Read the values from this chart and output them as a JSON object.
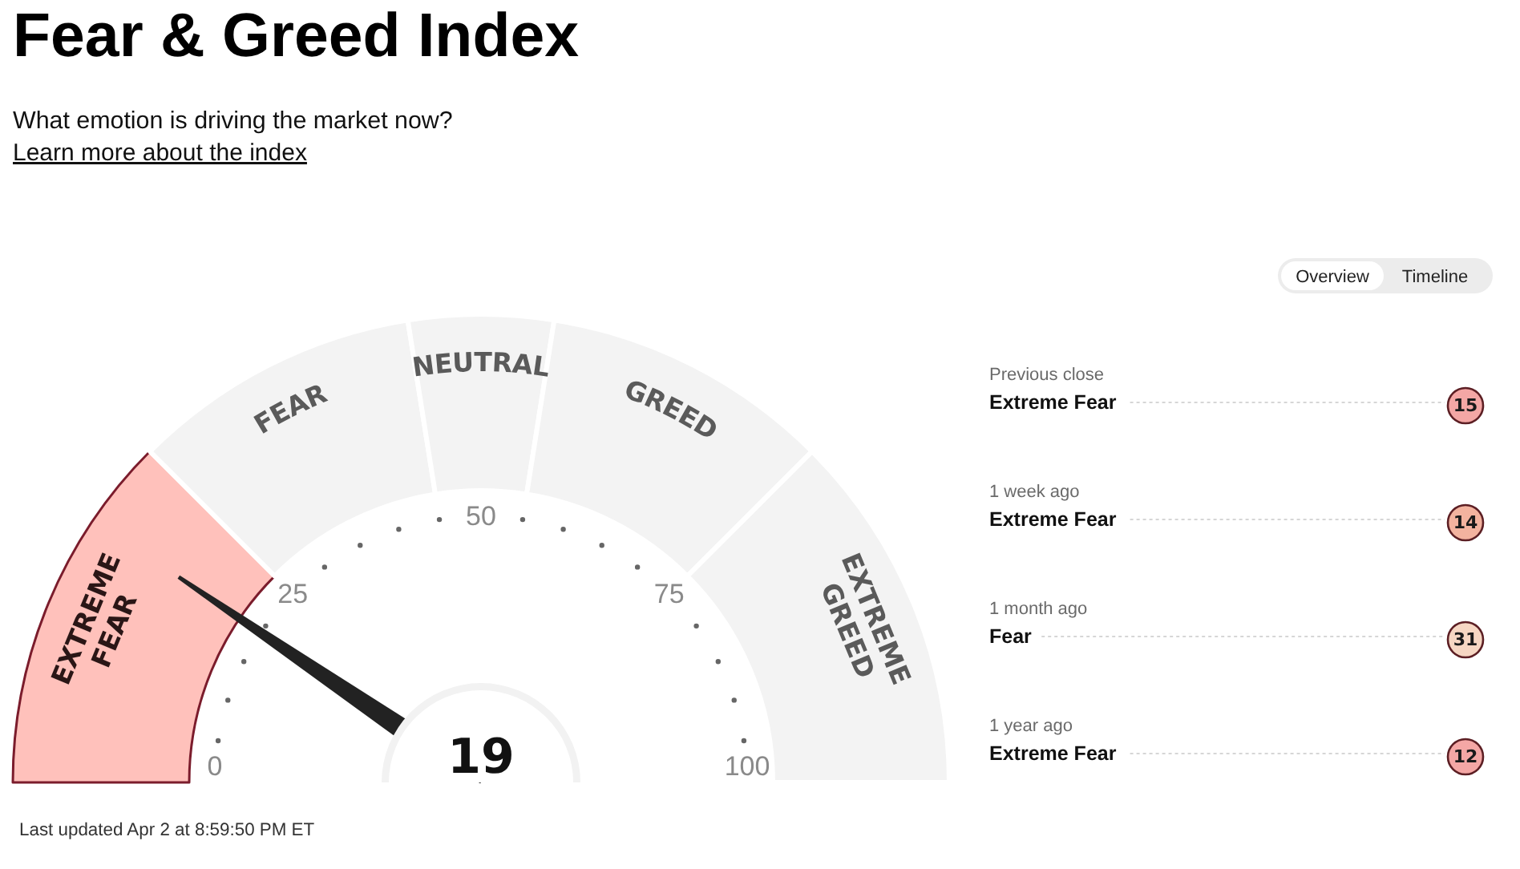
{
  "chart_data": [
    {
      "type": "donut",
      "title": "Fear & Greed Index",
      "subtitle": "What emotion is driving the market now?",
      "categories": [
        "EXTREME FEAR",
        "FEAR",
        "NEUTRAL",
        "GREED",
        "EXTREME GREED"
      ],
      "values": [
        25,
        20,
        10,
        20,
        25
      ],
      "colors": [
        "#ffc1bb",
        "#f3f3f3",
        "#f3f3f3",
        "#f3f3f3",
        "#f3f3f3"
      ],
      "needle": "EXTREME FEAR",
      "annotations": [
        "Learn more about the index",
        "0",
        "25",
        "50",
        "75",
        "100",
        "19",
        "Last updated Apr 2 at 8:59:50 PM ET"
      ]
    },
    {
      "type": "other",
      "categories": [
        "Previous close",
        "1 week ago",
        "1 month ago",
        "1 year ago"
      ],
      "values": [
        15,
        14,
        31,
        12
      ],
      "colors": [
        "#f4a7a5",
        "#f3b39f",
        "#f6d7c3",
        "#f4a7a5"
      ],
      "data_labels": true,
      "annotations": [
        "Extreme Fear",
        "Extreme Fear",
        "Fear",
        "Extreme Fear",
        "Overview",
        "Timeline"
      ]
    }
  ]
}
